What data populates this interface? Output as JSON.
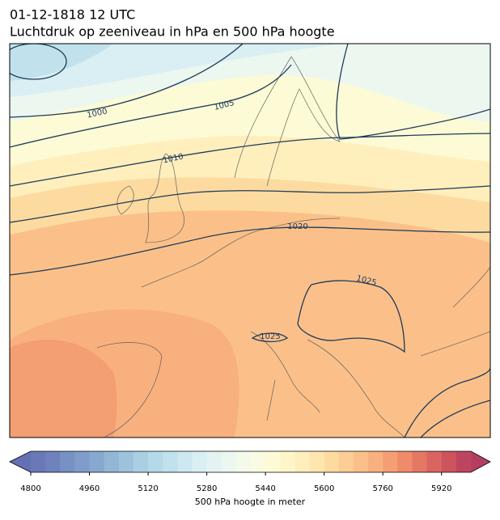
{
  "header": {
    "lines": [
      "01-12-1818 12 UTC",
      "Luchtdruk op zeeniveau in hPa en 500 hPa hoogte"
    ]
  },
  "map": {
    "contour_labels": [
      "1000",
      "1005",
      "1010",
      "1020",
      "1025",
      "1025"
    ]
  },
  "colorbar": {
    "lim": [
      4800,
      6000
    ],
    "ticks": [
      4800,
      4960,
      5120,
      5280,
      5440,
      5600,
      5760,
      5920
    ],
    "colors": [
      "#6a78b8",
      "#6f82bd",
      "#7791c5",
      "#7f9ccb",
      "#87a9d0",
      "#92b6d6",
      "#9dc3dc",
      "#a9d0e2",
      "#b5d9e8",
      "#c1e1ec",
      "#cde8f0",
      "#d9eff3",
      "#e3f3f3",
      "#ecf7f0",
      "#f3faea",
      "#f9fce2",
      "#fdfbd5",
      "#fef6c9",
      "#feefbc",
      "#fee6ae",
      "#fddba0",
      "#fcce94",
      "#fbc089",
      "#f8b07e",
      "#f49e74",
      "#ee8b6b",
      "#e57865",
      "#da6560",
      "#cd535d",
      "#be4560"
    ],
    "under_color": "#6370b5",
    "over_color": "#b53e60",
    "label": "500 hPa hoogte in meter"
  }
}
